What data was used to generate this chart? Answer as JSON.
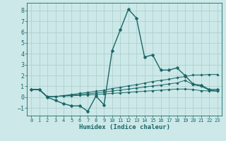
{
  "xlabel": "Humidex (Indice chaleur)",
  "xlim": [
    -0.5,
    23.5
  ],
  "ylim": [
    -1.7,
    8.7
  ],
  "yticks": [
    -1,
    0,
    1,
    2,
    3,
    4,
    5,
    6,
    7,
    8
  ],
  "xticks": [
    0,
    1,
    2,
    3,
    4,
    5,
    6,
    7,
    8,
    9,
    10,
    11,
    12,
    13,
    14,
    15,
    16,
    17,
    18,
    19,
    20,
    21,
    22,
    23
  ],
  "bg_color": "#cce8e8",
  "grid_color": "#aacccc",
  "line_color": "#1a6666",
  "lines": [
    {
      "x": [
        0,
        1,
        2,
        3,
        4,
        5,
        6,
        7,
        8,
        9,
        10,
        11,
        12,
        13,
        14,
        15,
        16,
        17,
        18,
        19,
        20,
        21,
        22,
        23
      ],
      "y": [
        0.7,
        0.7,
        0.0,
        -0.3,
        -0.6,
        -0.8,
        -0.8,
        -1.3,
        0.1,
        -0.7,
        4.3,
        6.2,
        8.1,
        7.3,
        3.7,
        3.9,
        2.5,
        2.5,
        2.7,
        2.0,
        1.2,
        1.1,
        0.7,
        0.7
      ],
      "marker": "D",
      "markersize": 2.5,
      "linewidth": 1.0
    },
    {
      "x": [
        0,
        1,
        2,
        3,
        4,
        5,
        6,
        7,
        8,
        9,
        10,
        11,
        12,
        13,
        14,
        15,
        16,
        17,
        18,
        19,
        20,
        21,
        22,
        23
      ],
      "y": [
        0.7,
        0.7,
        0.05,
        0.07,
        0.15,
        0.25,
        0.35,
        0.45,
        0.55,
        0.65,
        0.8,
        0.9,
        1.05,
        1.15,
        1.3,
        1.45,
        1.55,
        1.65,
        1.8,
        1.9,
        2.05,
        2.05,
        2.1,
        2.1
      ],
      "marker": "D",
      "markersize": 1.8,
      "linewidth": 0.7
    },
    {
      "x": [
        0,
        1,
        2,
        3,
        4,
        5,
        6,
        7,
        8,
        9,
        10,
        11,
        12,
        13,
        14,
        15,
        16,
        17,
        18,
        19,
        20,
        21,
        22,
        23
      ],
      "y": [
        0.7,
        0.7,
        0.05,
        0.07,
        0.12,
        0.18,
        0.25,
        0.32,
        0.4,
        0.48,
        0.57,
        0.66,
        0.75,
        0.84,
        0.94,
        1.03,
        1.12,
        1.22,
        1.32,
        1.55,
        1.15,
        1.0,
        0.65,
        0.55
      ],
      "marker": "D",
      "markersize": 1.8,
      "linewidth": 0.7
    },
    {
      "x": [
        0,
        1,
        2,
        3,
        4,
        5,
        6,
        7,
        8,
        9,
        10,
        11,
        12,
        13,
        14,
        15,
        16,
        17,
        18,
        19,
        20,
        21,
        22,
        23
      ],
      "y": [
        0.7,
        0.7,
        0.05,
        0.07,
        0.1,
        0.13,
        0.17,
        0.21,
        0.25,
        0.3,
        0.35,
        0.4,
        0.45,
        0.5,
        0.55,
        0.6,
        0.65,
        0.7,
        0.75,
        0.75,
        0.7,
        0.6,
        0.58,
        0.55
      ],
      "marker": "D",
      "markersize": 1.8,
      "linewidth": 0.7
    }
  ]
}
